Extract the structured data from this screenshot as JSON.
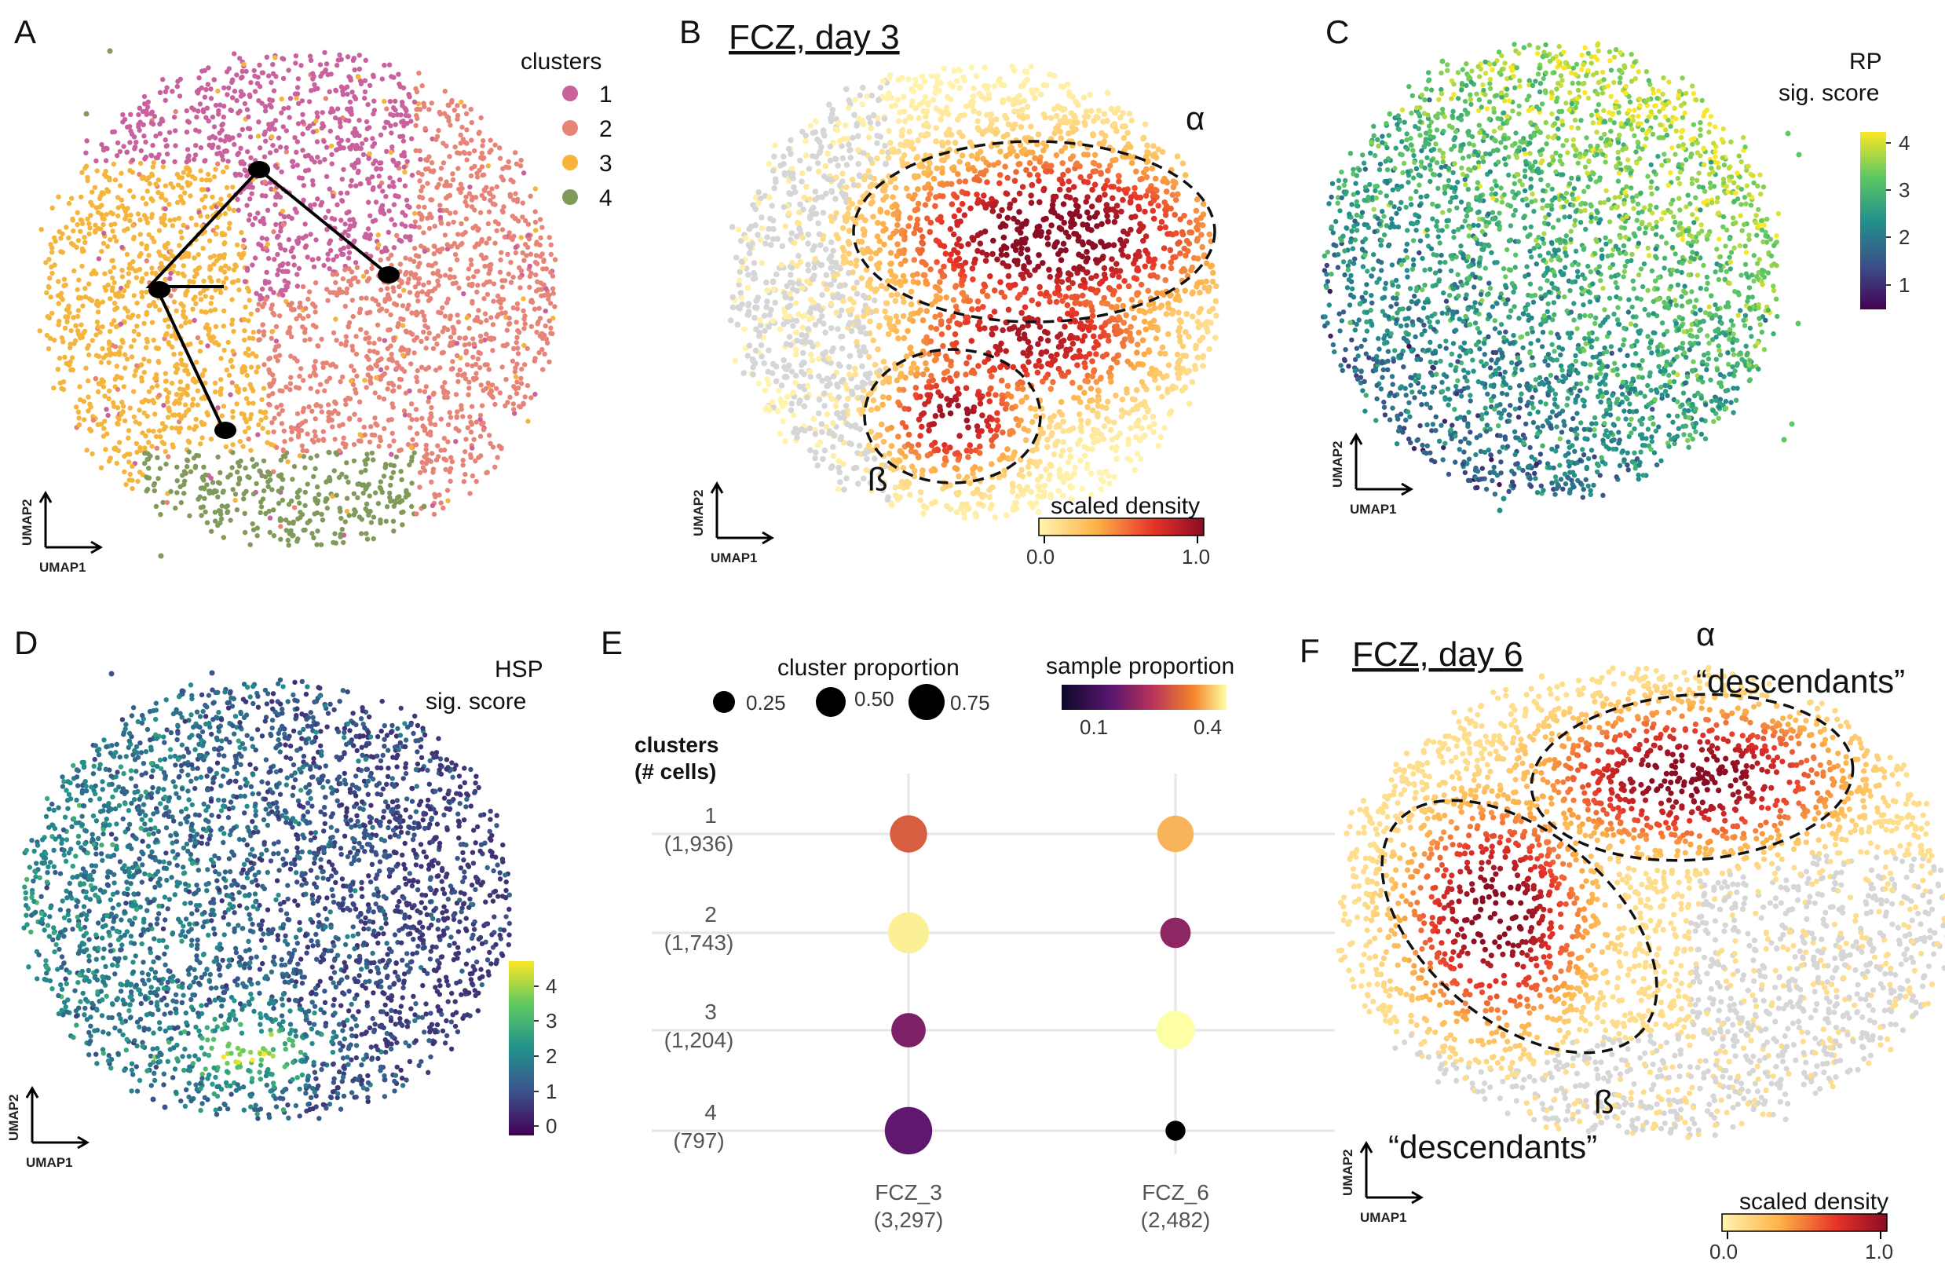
{
  "colors": {
    "cluster1": "#c9619e",
    "cluster2": "#e78478",
    "cluster3": "#f5b43b",
    "cluster4": "#7f9a5a",
    "background_cells": "#d6d6d6",
    "ellipse": "#111111"
  },
  "panels": {
    "A": {
      "label": "A",
      "legend_title": "clusters",
      "legend_items": [
        "1",
        "2",
        "3",
        "4"
      ],
      "axis_x": "UMAP1",
      "axis_y": "UMAP2"
    },
    "B": {
      "label": "B",
      "title": "FCZ, day 3",
      "alpha": "α",
      "beta": "ß",
      "colorbar_title": "scaled density",
      "colorbar_ticks": [
        "0.0",
        "1.0"
      ],
      "axis_x": "UMAP1",
      "axis_y": "UMAP2"
    },
    "C": {
      "label": "C",
      "colorbar_title_1": "RP",
      "colorbar_title_2": "sig. score",
      "colorbar_ticks": [
        "1",
        "2",
        "3",
        "4"
      ],
      "axis_x": "UMAP1",
      "axis_y": "UMAP2"
    },
    "D": {
      "label": "D",
      "colorbar_title_1": "HSP",
      "colorbar_title_2": "sig. score",
      "colorbar_ticks": [
        "0",
        "1",
        "2",
        "3",
        "4"
      ],
      "axis_x": "UMAP1",
      "axis_y": "UMAP2"
    },
    "E": {
      "label": "E",
      "size_legend_title": "cluster proportion",
      "size_legend_values": [
        "0.25",
        "0.50",
        "0.75"
      ],
      "color_legend_title": "sample proportion",
      "color_legend_ticks": [
        "0.1",
        "0.4"
      ],
      "row_header_1": "clusters",
      "row_header_2": "(# cells)"
    },
    "F": {
      "label": "F",
      "title": "FCZ, day 6",
      "alpha": "α",
      "alpha_desc": "“descendants”",
      "beta": "ß",
      "beta_desc": "“descendants”",
      "colorbar_title": "scaled density",
      "colorbar_ticks": [
        "0.0",
        "1.0"
      ],
      "axis_x": "UMAP1",
      "axis_y": "UMAP2"
    }
  },
  "chart_data": [
    {
      "type": "scatter",
      "panel": "A",
      "description_of_encoding": "UMAP embedding colored by cluster with trajectory",
      "series": [
        {
          "name": "1"
        },
        {
          "name": "2"
        },
        {
          "name": "3"
        },
        {
          "name": "4"
        }
      ],
      "trajectory_nodes": [
        "cluster 3 node",
        "cluster 1 node",
        "cluster 2 node",
        "cluster 4 node"
      ],
      "xlabel": "UMAP1",
      "ylabel": "UMAP2"
    },
    {
      "type": "scatter",
      "panel": "B",
      "title": "FCZ, day 3",
      "colorbar": {
        "title": "scaled density",
        "range": [
          0.0,
          1.0
        ]
      },
      "xlabel": "UMAP1",
      "ylabel": "UMAP2"
    },
    {
      "type": "scatter",
      "panel": "C",
      "colorbar": {
        "title": "RP sig. score",
        "range": [
          0.6,
          4.2
        ],
        "ticks": [
          1,
          2,
          3,
          4
        ]
      },
      "xlabel": "UMAP1",
      "ylabel": "UMAP2"
    },
    {
      "type": "scatter",
      "panel": "D",
      "colorbar": {
        "title": "HSP sig. score",
        "range": [
          -0.2,
          4.8
        ],
        "ticks": [
          0,
          1,
          2,
          3,
          4
        ]
      },
      "xlabel": "UMAP1",
      "ylabel": "UMAP2"
    },
    {
      "type": "scatter",
      "panel": "E",
      "samples": [
        {
          "label": "FCZ_3",
          "count": "(3,297)"
        },
        {
          "label": "FCZ_6",
          "count": "(2,482)"
        }
      ],
      "clusters": [
        {
          "label": "1",
          "count": "(1,936)"
        },
        {
          "label": "2",
          "count": "(1,743)"
        },
        {
          "label": "3",
          "count": "(1,204)"
        },
        {
          "label": "4",
          "count": "(797)"
        }
      ],
      "cluster_proportion": [
        [
          0.35,
          0.33
        ],
        [
          0.45,
          0.2
        ],
        [
          0.28,
          0.38
        ],
        [
          0.65,
          0.05
        ]
      ],
      "sample_proportion": [
        [
          0.3,
          0.38
        ],
        [
          0.42,
          0.2
        ],
        [
          0.18,
          0.43
        ],
        [
          0.15,
          0.02
        ]
      ],
      "size_legend": [
        0.25,
        0.5,
        0.75
      ],
      "color_legend": {
        "title": "sample proportion",
        "range": [
          0.02,
          0.43
        ],
        "ticks": [
          0.1,
          0.4
        ]
      }
    },
    {
      "type": "scatter",
      "panel": "F",
      "title": "FCZ, day 6",
      "colorbar": {
        "title": "scaled density",
        "range": [
          0.0,
          1.0
        ]
      },
      "xlabel": "UMAP1",
      "ylabel": "UMAP2"
    }
  ]
}
